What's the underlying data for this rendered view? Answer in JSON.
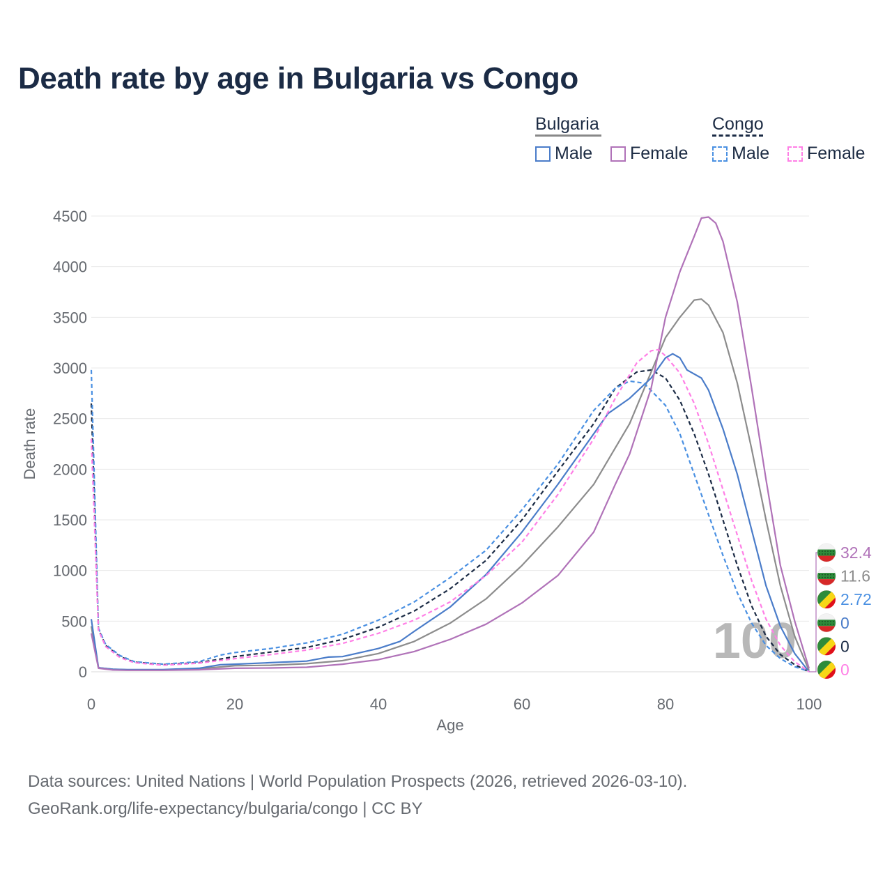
{
  "title": "Death rate by age in Bulgaria vs Congo",
  "legend": {
    "groups": [
      {
        "name": "Bulgaria",
        "style": "solid",
        "underline_color": "#888888",
        "items": [
          {
            "label": "Male",
            "color": "#4a7cc9"
          },
          {
            "label": "Female",
            "color": "#b072b8"
          }
        ]
      },
      {
        "name": "Congo",
        "style": "dashed",
        "underline_color": "#1b2b45",
        "items": [
          {
            "label": "Male",
            "color": "#4a90e2"
          },
          {
            "label": "Female",
            "color": "#ff7fe6"
          }
        ]
      }
    ]
  },
  "source": {
    "line1": "Data sources: United Nations | World Population Prospects (2026, retrieved 2026-03-10).",
    "line2": "GeoRank.org/life-expectancy/bulgaria/congo | CC BY"
  },
  "chart_data": {
    "type": "line",
    "xlabel": "Age",
    "ylabel": "Death rate",
    "xlim": [
      0,
      100
    ],
    "ylim": [
      0,
      4500
    ],
    "xticks": [
      0,
      20,
      40,
      60,
      80,
      100
    ],
    "yticks": [
      0,
      500,
      1000,
      1500,
      2000,
      2500,
      3000,
      3500,
      4000,
      4500
    ],
    "grid": true,
    "current_age_label": "100",
    "series": [
      {
        "name": "Bulgaria Total",
        "country": "Bulgaria",
        "sex": "Total",
        "color": "#8c8c8c",
        "dash": false,
        "points": [
          [
            0,
            450
          ],
          [
            1,
            40
          ],
          [
            3,
            25
          ],
          [
            5,
            20
          ],
          [
            10,
            20
          ],
          [
            15,
            30
          ],
          [
            20,
            60
          ],
          [
            25,
            65
          ],
          [
            30,
            80
          ],
          [
            35,
            110
          ],
          [
            40,
            180
          ],
          [
            45,
            300
          ],
          [
            50,
            480
          ],
          [
            55,
            720
          ],
          [
            60,
            1050
          ],
          [
            65,
            1430
          ],
          [
            70,
            1850
          ],
          [
            75,
            2450
          ],
          [
            80,
            3300
          ],
          [
            82,
            3500
          ],
          [
            84,
            3670
          ],
          [
            85,
            3680
          ],
          [
            86,
            3620
          ],
          [
            88,
            3350
          ],
          [
            90,
            2850
          ],
          [
            92,
            2200
          ],
          [
            94,
            1500
          ],
          [
            96,
            850
          ],
          [
            98,
            350
          ],
          [
            100,
            11.6
          ]
        ]
      },
      {
        "name": "Bulgaria Male",
        "country": "Bulgaria",
        "sex": "Male",
        "color": "#4a7cc9",
        "dash": false,
        "points": [
          [
            0,
            520
          ],
          [
            1,
            40
          ],
          [
            3,
            25
          ],
          [
            5,
            22
          ],
          [
            10,
            22
          ],
          [
            15,
            35
          ],
          [
            18,
            70
          ],
          [
            20,
            75
          ],
          [
            25,
            90
          ],
          [
            30,
            105
          ],
          [
            33,
            145
          ],
          [
            35,
            150
          ],
          [
            40,
            230
          ],
          [
            43,
            300
          ],
          [
            45,
            400
          ],
          [
            50,
            640
          ],
          [
            55,
            960
          ],
          [
            60,
            1380
          ],
          [
            65,
            1850
          ],
          [
            70,
            2350
          ],
          [
            72,
            2550
          ],
          [
            75,
            2700
          ],
          [
            78,
            2900
          ],
          [
            80,
            3100
          ],
          [
            81,
            3140
          ],
          [
            82,
            3100
          ],
          [
            83,
            2980
          ],
          [
            85,
            2900
          ],
          [
            86,
            2780
          ],
          [
            88,
            2400
          ],
          [
            90,
            1950
          ],
          [
            92,
            1400
          ],
          [
            94,
            850
          ],
          [
            96,
            450
          ],
          [
            98,
            180
          ],
          [
            100,
            0
          ]
        ]
      },
      {
        "name": "Bulgaria Female",
        "country": "Bulgaria",
        "sex": "Female",
        "color": "#b072b8",
        "dash": false,
        "points": [
          [
            0,
            380
          ],
          [
            1,
            35
          ],
          [
            3,
            18
          ],
          [
            5,
            15
          ],
          [
            10,
            15
          ],
          [
            15,
            20
          ],
          [
            20,
            35
          ],
          [
            25,
            38
          ],
          [
            30,
            45
          ],
          [
            35,
            75
          ],
          [
            40,
            120
          ],
          [
            45,
            200
          ],
          [
            50,
            320
          ],
          [
            55,
            470
          ],
          [
            60,
            680
          ],
          [
            65,
            950
          ],
          [
            70,
            1380
          ],
          [
            73,
            1850
          ],
          [
            75,
            2150
          ],
          [
            78,
            2800
          ],
          [
            80,
            3500
          ],
          [
            82,
            3950
          ],
          [
            84,
            4300
          ],
          [
            85,
            4480
          ],
          [
            86,
            4490
          ],
          [
            87,
            4430
          ],
          [
            88,
            4250
          ],
          [
            90,
            3650
          ],
          [
            92,
            2800
          ],
          [
            94,
            1900
          ],
          [
            96,
            1050
          ],
          [
            98,
            500
          ],
          [
            100,
            32.4
          ]
        ]
      },
      {
        "name": "Congo Total",
        "country": "Congo",
        "sex": "Total",
        "color": "#1b2b45",
        "dash": true,
        "points": [
          [
            0,
            2650
          ],
          [
            1,
            420
          ],
          [
            2,
            260
          ],
          [
            4,
            150
          ],
          [
            6,
            95
          ],
          [
            10,
            70
          ],
          [
            15,
            90
          ],
          [
            20,
            150
          ],
          [
            25,
            195
          ],
          [
            30,
            240
          ],
          [
            35,
            320
          ],
          [
            40,
            440
          ],
          [
            45,
            600
          ],
          [
            50,
            820
          ],
          [
            55,
            1100
          ],
          [
            60,
            1500
          ],
          [
            65,
            1980
          ],
          [
            70,
            2450
          ],
          [
            73,
            2800
          ],
          [
            76,
            2960
          ],
          [
            78,
            2980
          ],
          [
            80,
            2900
          ],
          [
            82,
            2680
          ],
          [
            84,
            2350
          ],
          [
            86,
            1950
          ],
          [
            88,
            1500
          ],
          [
            90,
            1050
          ],
          [
            92,
            650
          ],
          [
            94,
            350
          ],
          [
            96,
            170
          ],
          [
            98,
            70
          ],
          [
            100,
            0
          ]
        ]
      },
      {
        "name": "Congo Male",
        "country": "Congo",
        "sex": "Male",
        "color": "#4a90e2",
        "dash": true,
        "points": [
          [
            0,
            2980
          ],
          [
            1,
            430
          ],
          [
            2,
            270
          ],
          [
            4,
            160
          ],
          [
            6,
            100
          ],
          [
            10,
            75
          ],
          [
            15,
            100
          ],
          [
            18,
            165
          ],
          [
            20,
            190
          ],
          [
            25,
            230
          ],
          [
            30,
            285
          ],
          [
            35,
            370
          ],
          [
            40,
            510
          ],
          [
            45,
            690
          ],
          [
            50,
            930
          ],
          [
            55,
            1200
          ],
          [
            60,
            1600
          ],
          [
            65,
            2050
          ],
          [
            70,
            2580
          ],
          [
            73,
            2800
          ],
          [
            75,
            2870
          ],
          [
            77,
            2850
          ],
          [
            80,
            2630
          ],
          [
            82,
            2350
          ],
          [
            84,
            1950
          ],
          [
            86,
            1550
          ],
          [
            88,
            1150
          ],
          [
            90,
            780
          ],
          [
            92,
            480
          ],
          [
            94,
            260
          ],
          [
            96,
            130
          ],
          [
            98,
            50
          ],
          [
            100,
            2.72
          ]
        ]
      },
      {
        "name": "Congo Female",
        "country": "Congo",
        "sex": "Female",
        "color": "#ff7fe6",
        "dash": true,
        "points": [
          [
            0,
            2300
          ],
          [
            1,
            410
          ],
          [
            2,
            250
          ],
          [
            4,
            140
          ],
          [
            6,
            90
          ],
          [
            10,
            65
          ],
          [
            15,
            85
          ],
          [
            20,
            130
          ],
          [
            25,
            170
          ],
          [
            30,
            215
          ],
          [
            35,
            280
          ],
          [
            40,
            380
          ],
          [
            45,
            510
          ],
          [
            50,
            690
          ],
          [
            55,
            950
          ],
          [
            60,
            1280
          ],
          [
            65,
            1750
          ],
          [
            70,
            2300
          ],
          [
            73,
            2700
          ],
          [
            76,
            3050
          ],
          [
            78,
            3170
          ],
          [
            79,
            3180
          ],
          [
            80,
            3120
          ],
          [
            82,
            2950
          ],
          [
            84,
            2650
          ],
          [
            86,
            2250
          ],
          [
            88,
            1800
          ],
          [
            90,
            1350
          ],
          [
            92,
            900
          ],
          [
            94,
            520
          ],
          [
            96,
            260
          ],
          [
            98,
            100
          ],
          [
            100,
            0
          ]
        ]
      }
    ],
    "end_labels": [
      {
        "value": "32.4",
        "color": "#b072b8",
        "flag": "bulgaria"
      },
      {
        "value": "11.6",
        "color": "#8c8c8c",
        "flag": "bulgaria"
      },
      {
        "value": "2.72",
        "color": "#4a90e2",
        "flag": "congo"
      },
      {
        "value": "0",
        "color": "#4a7cc9",
        "flag": "bulgaria"
      },
      {
        "value": "0",
        "color": "#1b2b45",
        "flag": "congo"
      },
      {
        "value": "0",
        "color": "#ff7fe6",
        "flag": "congo"
      }
    ]
  }
}
